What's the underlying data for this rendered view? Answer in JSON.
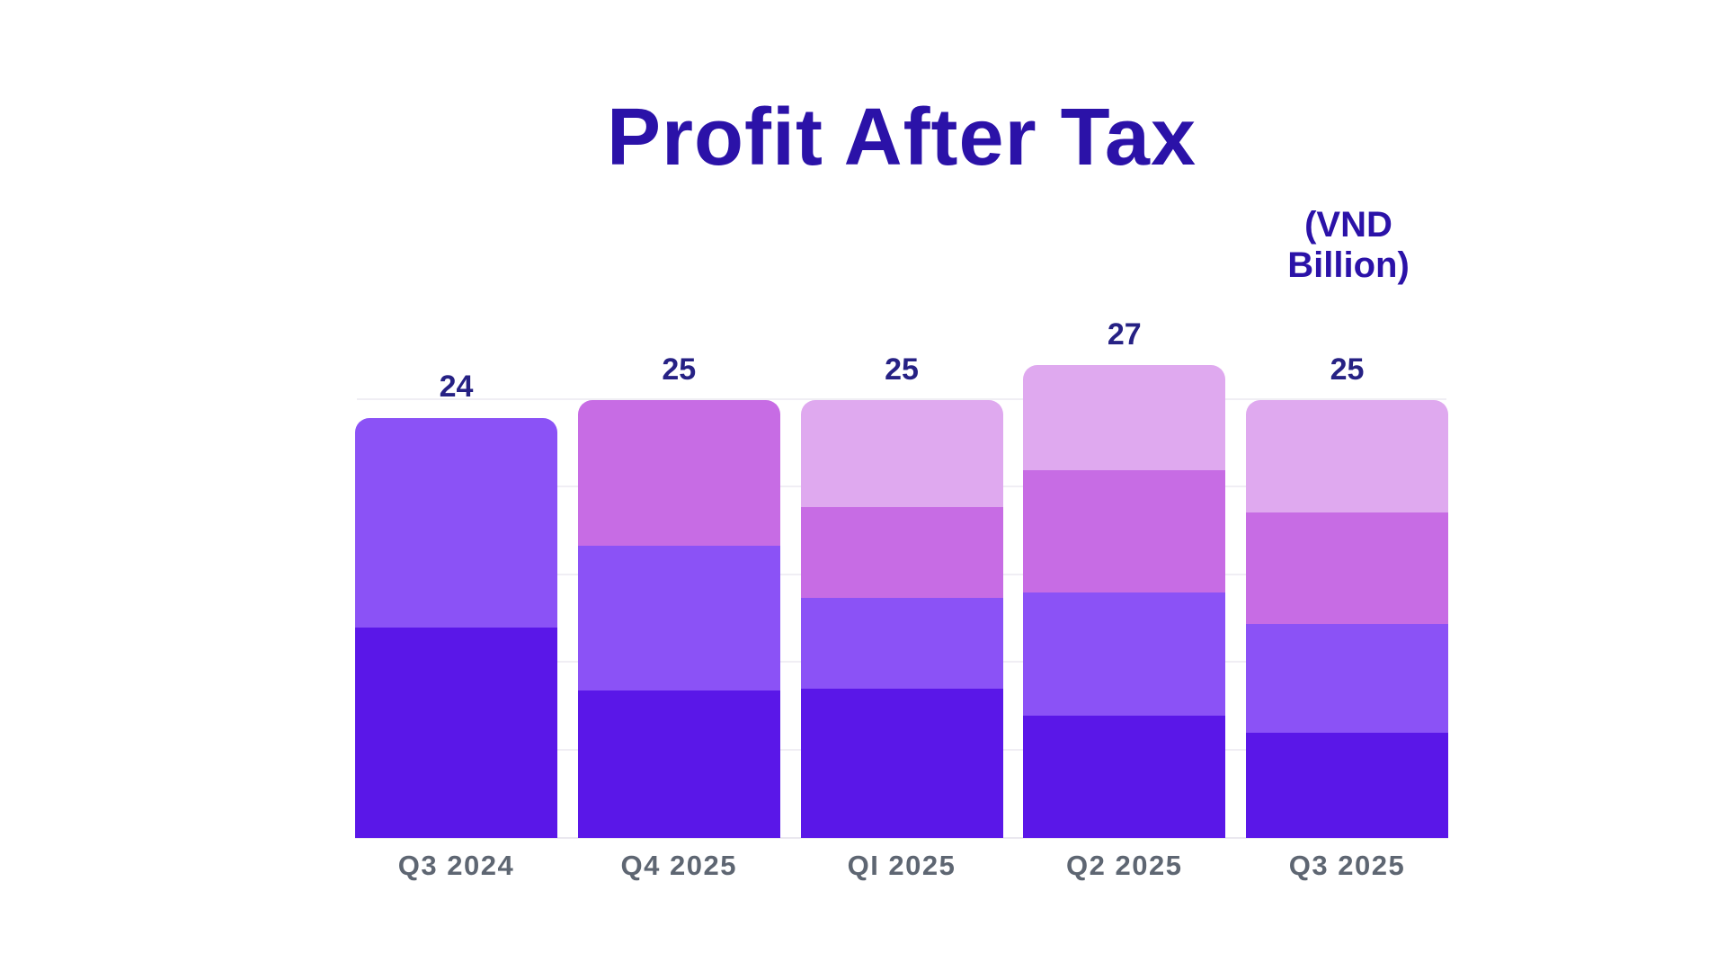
{
  "chart_data": {
    "type": "bar",
    "variant": "stacked",
    "title": "Profit After Tax",
    "subtitle": "(VND Billion)",
    "categories": [
      "Q3 2024",
      "Q4 2025",
      "QI 2025",
      "Q2 2025",
      "Q3 2025"
    ],
    "totals": [
      24,
      25,
      25,
      27,
      25
    ],
    "series_note": "segments listed bottom-to-top per bar, values in VND billion",
    "stacks": [
      [
        12,
        12
      ],
      [
        8.4,
        8.3,
        8.3
      ],
      [
        8.5,
        5.2,
        5.2,
        6.1
      ],
      [
        7,
        7,
        7,
        6
      ],
      [
        6,
        6.2,
        6.4,
        6.4
      ]
    ],
    "segment_colors": [
      "#5A17E8",
      "#8B52F6",
      "#C76CE4",
      "#DFA9EF"
    ],
    "xlabel": "",
    "ylabel": "",
    "ylim": [
      0,
      27
    ],
    "gridline_values": [
      5,
      10,
      15,
      20,
      25
    ],
    "value_axis_labels_visible": false,
    "legend_position": "none",
    "colors": {
      "title": "#2B12A8",
      "value_label": "#262184",
      "axis_label": "#5E6672",
      "gridline": "#F0EEF4",
      "background": "#FFFFFF"
    }
  }
}
